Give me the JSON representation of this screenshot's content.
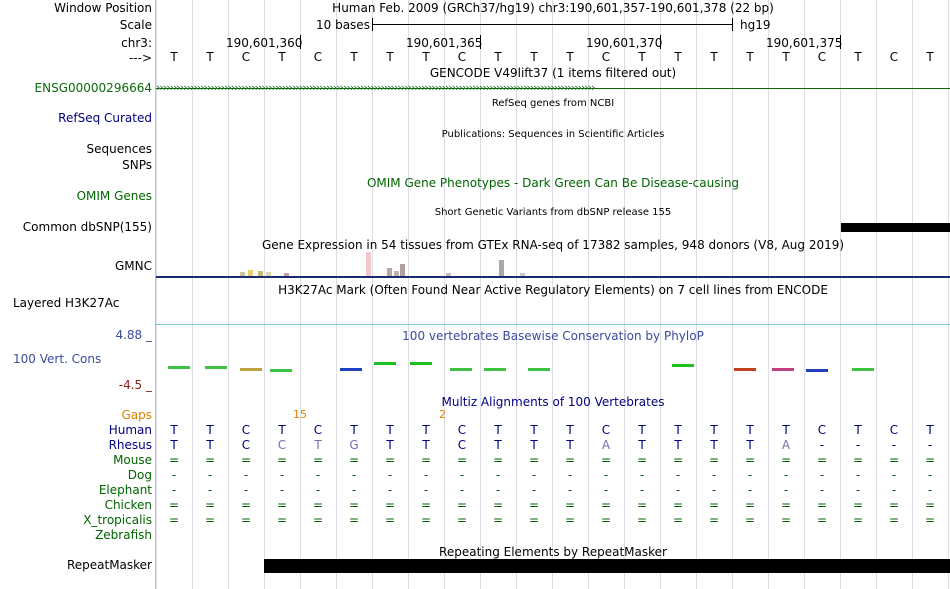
{
  "labels": {
    "window_position": "Window Position",
    "scale": "Scale",
    "chr": "chr3:",
    "strand": "--->",
    "ensg": "ENSG00000296664",
    "refseq": "RefSeq Curated",
    "sequences": "Sequences",
    "snps": "SNPs",
    "omim": "OMIM Genes",
    "dbsnp": "Common dbSNP(155)",
    "gmnc": "GMNC",
    "h3k27ac": "Layered H3K27Ac",
    "phylop_max": "4.88 _",
    "vert_cons": "100 Vert. Cons",
    "phylop_min": "-4.5 _",
    "gaps": "Gaps",
    "repeatmasker": "RepeatMasker"
  },
  "header": {
    "assembly_text": "Human Feb. 2009 (GRCh37/hg19)   chr3:190,601,357-190,601,378 (22 bp)",
    "scale_text": "10 bases",
    "scale_db": "hg19",
    "positions": [
      "190,601,360",
      "190,601,365",
      "190,601,370",
      "190,601,375"
    ]
  },
  "tracks": {
    "gencode": "GENCODE V49lift37 (1 items filtered out)",
    "refseq": "RefSeq genes from NCBI",
    "publications": "Publications: Sequences in Scientific Articles",
    "omim": "OMIM Gene Phenotypes - Dark Green Can Be Disease-causing",
    "dbsnp": "Short Genetic Variants from dbSNP release 155",
    "gtex": "Gene Expression in 54 tissues from GTEx RNA-seq of 17382 samples, 948 donors (V8, Aug 2019)",
    "h3k27ac": "H3K27Ac Mark (Often Found Near Active Regulatory Elements) on 7 cell lines from ENCODE",
    "phylop": "100 vertebrates Basewise Conservation by PhyloP",
    "multiz": "Multiz Alignments of 100 Vertebrates",
    "repeatmasker": "Repeating Elements by RepeatMasker"
  },
  "gaps": [
    "15",
    "2"
  ],
  "species": [
    "Human",
    "Rhesus",
    "Mouse",
    "Dog",
    "Elephant",
    "Chicken",
    "X_tropicalis",
    "Zebrafish"
  ],
  "sequence": [
    "T",
    "T",
    "C",
    "T",
    "C",
    "T",
    "T",
    "T",
    "C",
    "T",
    "T",
    "T",
    "C",
    "T",
    "T",
    "T",
    "T",
    "T",
    "C",
    "T",
    "C",
    "T"
  ],
  "alignments": {
    "human": [
      "T",
      "T",
      "C",
      "T",
      "C",
      "T",
      "T",
      "T",
      "C",
      "T",
      "T",
      "T",
      "C",
      "T",
      "T",
      "T",
      "T",
      "T",
      "C",
      "T",
      "C",
      "T"
    ],
    "rhesus": [
      "T",
      "T",
      "C",
      "C",
      "T",
      "G",
      "T",
      "T",
      "C",
      "T",
      "T",
      "T",
      "A",
      "T",
      "T",
      "T",
      "T",
      "A",
      "-",
      "-",
      "-",
      "-"
    ],
    "mouse": [
      "=",
      "=",
      "=",
      "=",
      "=",
      "=",
      "=",
      "=",
      "=",
      "=",
      "=",
      "=",
      "=",
      "=",
      "=",
      "=",
      "=",
      "=",
      "=",
      "=",
      "=",
      "="
    ],
    "dog": [
      "-",
      "-",
      "-",
      "-",
      "-",
      "-",
      "-",
      "-",
      "-",
      "-",
      "-",
      "-",
      "-",
      "-",
      "-",
      "-",
      "-",
      "-",
      "-",
      "-",
      "-",
      "-"
    ],
    "elephant": [
      "-",
      "-",
      "-",
      "-",
      "-",
      "-",
      "-",
      "-",
      "-",
      "-",
      "-",
      "-",
      "-",
      "-",
      "-",
      "-",
      "-",
      "-",
      "-",
      "-",
      "-",
      "-"
    ],
    "chicken": [
      "=",
      "=",
      "=",
      "=",
      "=",
      "=",
      "=",
      "=",
      "=",
      "=",
      "=",
      "=",
      "=",
      "=",
      "=",
      "=",
      "=",
      "=",
      "=",
      "=",
      "=",
      "="
    ],
    "xtrop": [
      "=",
      "=",
      "=",
      "=",
      "=",
      "=",
      "=",
      "=",
      "=",
      "=",
      "=",
      "=",
      "=",
      "=",
      "=",
      "=",
      "=",
      "=",
      "=",
      "=",
      "=",
      "="
    ]
  },
  "colors": {
    "label": "#000000",
    "track_blue": "#000080",
    "omim_green": "#006400",
    "gap_orange": "#dc8200",
    "phylop": "#3a4aa0",
    "ensg_green": "#0a6a0a"
  }
}
